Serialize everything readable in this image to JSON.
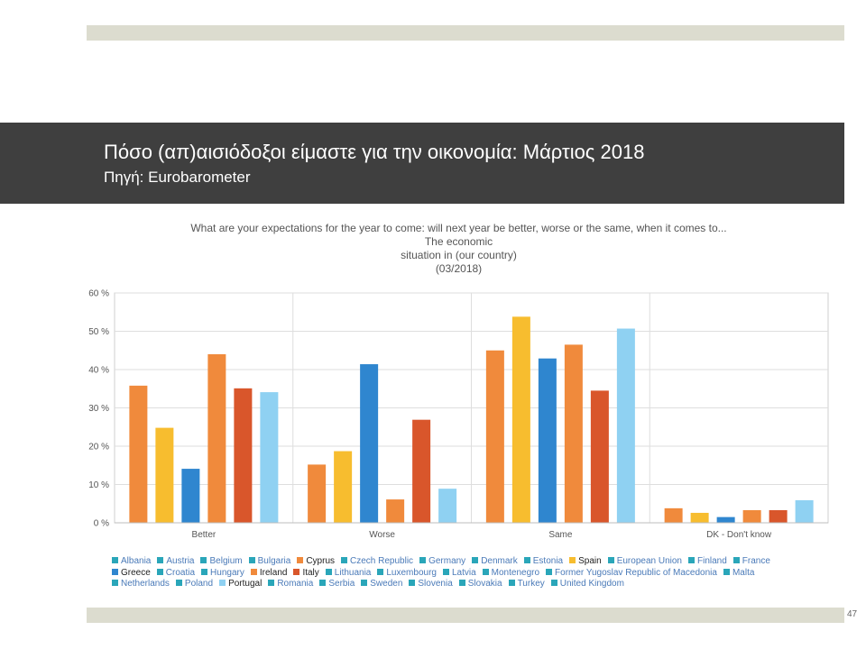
{
  "slide": {
    "title": "Πόσο (απ)αισιόδοξοι είμαστε για την οικονομία: Μάρτιος 2018",
    "subtitle": "Πηγή: Eurobarometer",
    "page_number": "47"
  },
  "chart_data": {
    "type": "bar",
    "title_lines": [
      "What are your expectations for the year to come: will next year be better, worse or the same, when it comes to...",
      "The economic",
      "situation in (our country)",
      "(03/2018)"
    ],
    "categories": [
      "Better",
      "Worse",
      "Same",
      "DK - Don't know"
    ],
    "y_ticks": [
      "0 %",
      "10 %",
      "20 %",
      "30 %",
      "40 %",
      "50 %",
      "60 %"
    ],
    "ylim": [
      0,
      60
    ],
    "grid": true,
    "legend_position": "bottom",
    "series": [
      {
        "name": "Cyprus",
        "color": "#f08a3c",
        "values": [
          35.8,
          15.2,
          45.0,
          3.8
        ]
      },
      {
        "name": "Spain",
        "color": "#f7bd2f",
        "values": [
          24.8,
          18.7,
          53.8,
          2.6
        ]
      },
      {
        "name": "Greece",
        "color": "#2f86cf",
        "values": [
          14.1,
          41.4,
          42.9,
          1.5
        ]
      },
      {
        "name": "Ireland",
        "color": "#f08a3c",
        "values": [
          44.0,
          6.1,
          46.5,
          3.3
        ]
      },
      {
        "name": "Italy",
        "color": "#d9562b",
        "values": [
          35.1,
          26.9,
          34.5,
          3.3
        ]
      },
      {
        "name": "Portugal",
        "color": "#8fd1f2",
        "values": [
          34.1,
          8.9,
          50.7,
          5.9
        ]
      }
    ],
    "legend_rows": [
      [
        {
          "label": "Albania",
          "color": "#2aa6b9",
          "dark": false
        },
        {
          "label": "Austria",
          "color": "#2aa6b9",
          "dark": false
        },
        {
          "label": "Belgium",
          "color": "#2aa6b9",
          "dark": false
        },
        {
          "label": "Bulgaria",
          "color": "#2aa6b9",
          "dark": false
        },
        {
          "label": "Cyprus",
          "color": "#f08a3c",
          "dark": true
        },
        {
          "label": "Czech Republic",
          "color": "#2aa6b9",
          "dark": false
        },
        {
          "label": "Germany",
          "color": "#2aa6b9",
          "dark": false
        },
        {
          "label": "Denmark",
          "color": "#2aa6b9",
          "dark": false
        },
        {
          "label": "Estonia",
          "color": "#2aa6b9",
          "dark": false
        },
        {
          "label": "Spain",
          "color": "#f7bd2f",
          "dark": true
        },
        {
          "label": "European Union",
          "color": "#2aa6b9",
          "dark": false
        },
        {
          "label": "Finland",
          "color": "#2aa6b9",
          "dark": false
        },
        {
          "label": "France",
          "color": "#2aa6b9",
          "dark": false
        }
      ],
      [
        {
          "label": "Greece",
          "color": "#2f86cf",
          "dark": true
        },
        {
          "label": "Croatia",
          "color": "#2aa6b9",
          "dark": false
        },
        {
          "label": "Hungary",
          "color": "#2aa6b9",
          "dark": false
        },
        {
          "label": "Ireland",
          "color": "#f08a3c",
          "dark": true
        },
        {
          "label": "Italy",
          "color": "#d9562b",
          "dark": true
        },
        {
          "label": "Lithuania",
          "color": "#2aa6b9",
          "dark": false
        },
        {
          "label": "Luxembourg",
          "color": "#2aa6b9",
          "dark": false
        },
        {
          "label": "Latvia",
          "color": "#2aa6b9",
          "dark": false
        },
        {
          "label": "Montenegro",
          "color": "#2aa6b9",
          "dark": false
        },
        {
          "label": "Former Yugoslav Republic of Macedonia",
          "color": "#2aa6b9",
          "dark": false
        },
        {
          "label": "Malta",
          "color": "#2aa6b9",
          "dark": false
        }
      ],
      [
        {
          "label": "Netherlands",
          "color": "#2aa6b9",
          "dark": false
        },
        {
          "label": "Poland",
          "color": "#2aa6b9",
          "dark": false
        },
        {
          "label": "Portugal",
          "color": "#8fd1f2",
          "dark": true
        },
        {
          "label": "Romania",
          "color": "#2aa6b9",
          "dark": false
        },
        {
          "label": "Serbia",
          "color": "#2aa6b9",
          "dark": false
        },
        {
          "label": "Sweden",
          "color": "#2aa6b9",
          "dark": false
        },
        {
          "label": "Slovenia",
          "color": "#2aa6b9",
          "dark": false
        },
        {
          "label": "Slovakia",
          "color": "#2aa6b9",
          "dark": false
        },
        {
          "label": "Turkey",
          "color": "#2aa6b9",
          "dark": false
        },
        {
          "label": "United Kingdom",
          "color": "#2aa6b9",
          "dark": false
        }
      ]
    ]
  }
}
